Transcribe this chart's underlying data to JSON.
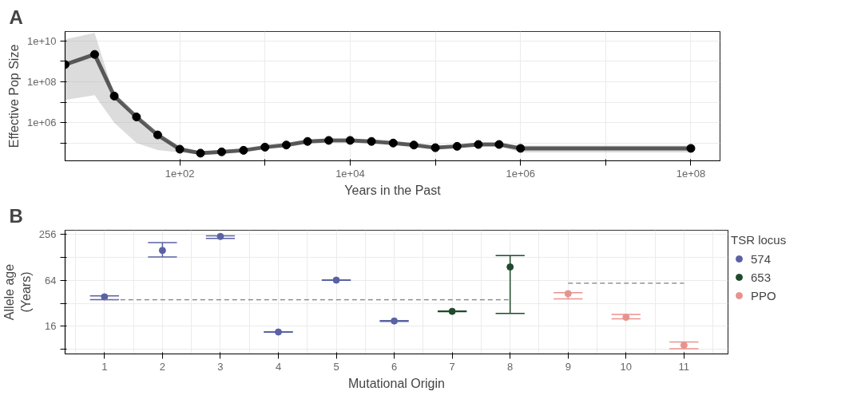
{
  "chart_data": [
    {
      "type": "line",
      "title": "A",
      "xlabel": "Years in the Past",
      "ylabel": "Effective Pop Size",
      "log": "xy",
      "grid": true,
      "marker": "circle",
      "line_style": "solid",
      "xlim": [
        4.5,
        220000000
      ],
      "ylim": [
        13500,
        29000000000
      ],
      "xticks": [
        {
          "value": 100,
          "label": "1e+02"
        },
        {
          "value": 1000,
          "label": null
        },
        {
          "value": 10000,
          "label": "1e+04"
        },
        {
          "value": 100000,
          "label": null
        },
        {
          "value": 1000000,
          "label": "1e+06"
        },
        {
          "value": 10000000,
          "label": null
        },
        {
          "value": 100000000,
          "label": "1e+08"
        }
      ],
      "yticks": [
        {
          "value": 100000,
          "label": null
        },
        {
          "value": 1000000,
          "label": "1e+06"
        },
        {
          "value": 10000000,
          "label": null
        },
        {
          "value": 100000000,
          "label": "1e+08"
        },
        {
          "value": 1000000000,
          "label": null
        },
        {
          "value": 10000000000,
          "label": "1e+10"
        }
      ],
      "series": [
        {
          "color": "#000000",
          "x": [
            4.5,
            10,
            17,
            31,
            55,
            100,
            175,
            310,
            560,
            1000,
            1780,
            3160,
            5600,
            10000,
            17800,
            32000,
            56000,
            100000,
            180000,
            320000,
            560000,
            1000000,
            100000000
          ],
          "values": [
            700000000,
            2200000000,
            20000000,
            1900000,
            250000,
            50000,
            32000,
            37000,
            44000,
            63000,
            80000,
            120000,
            135000,
            135000,
            120000,
            100000,
            80000,
            59000,
            69000,
            85000,
            85000,
            55000,
            55000
          ],
          "lower": [
            13000000,
            22000000,
            1000000,
            100000,
            45000,
            35000,
            27000,
            30000,
            37000,
            53000,
            68000,
            100000,
            115000,
            115000,
            100000,
            85000,
            68000,
            50000,
            59000,
            72000,
            70000,
            35000,
            35000
          ],
          "upper": [
            12000000000,
            25000000000,
            22000000,
            2100000,
            270000,
            60000,
            38000,
            43000,
            51000,
            73000,
            93000,
            140000,
            155000,
            155000,
            140000,
            115000,
            93000,
            68000,
            79000,
            98000,
            100000,
            75000,
            75000
          ]
        }
      ]
    },
    {
      "type": "scatter",
      "title": "B",
      "xlabel": "Mutational Origin",
      "ylabel": "Allele age\n(Years)",
      "log": true,
      "grid": true,
      "marker": "circle",
      "legend": "right",
      "legend_title": "TSR locus",
      "categories": [
        "1",
        "2",
        "3",
        "4",
        "5",
        "6",
        "7",
        "8",
        "9",
        "10",
        "11"
      ],
      "ylim": [
        7,
        286
      ],
      "yticks": [
        {
          "value": 8,
          "label": null
        },
        16,
        {
          "value": 32,
          "label": null
        },
        64,
        {
          "value": 128,
          "label": null
        },
        256
      ],
      "series": [
        {
          "name": "574",
          "color": "#5a62a3",
          "values": [
            38.8,
            156,
            237,
            13.5,
            64,
            18.8,
            null,
            null,
            null,
            null,
            null
          ],
          "errors": [
            [
              35.7,
              40
            ],
            [
              128,
              197
            ],
            [
              224,
              242
            ],
            [
              13.4,
              13.6
            ],
            [
              63.5,
              64.5
            ],
            [
              18.6,
              19
            ],
            null,
            null,
            null,
            null,
            null
          ]
        },
        {
          "name": "653",
          "color": "#1f4a2c",
          "values": [
            null,
            null,
            null,
            null,
            null,
            null,
            25.1,
            95,
            null,
            null,
            null
          ],
          "errors": [
            null,
            null,
            null,
            null,
            null,
            null,
            [
              24.9,
              25.3
            ],
            [
              23.6,
              134
            ],
            null,
            null,
            null
          ]
        },
        {
          "name": "PPO",
          "color": "#e8928e",
          "values": [
            null,
            null,
            null,
            null,
            null,
            null,
            null,
            null,
            42.7,
            21,
            9.1
          ],
          "errors": [
            null,
            null,
            null,
            null,
            null,
            null,
            null,
            null,
            [
              36.5,
              44
            ],
            [
              20.1,
              22.9
            ],
            [
              8.2,
              10
            ]
          ]
        },
        {
          "type": "line",
          "marker": "none",
          "color": "#7f7f7f",
          "line_style": "dashed",
          "values": [
            35.5,
            35.5,
            35.5,
            35.5,
            35.5,
            35.5,
            35.5,
            35.5,
            null,
            null,
            null
          ]
        },
        {
          "type": "line",
          "marker": "none",
          "color": "#7f7f7f",
          "line_style": "dashed",
          "values": [
            null,
            null,
            null,
            null,
            null,
            null,
            null,
            null,
            58.5,
            58.5,
            58.5
          ]
        }
      ]
    }
  ]
}
